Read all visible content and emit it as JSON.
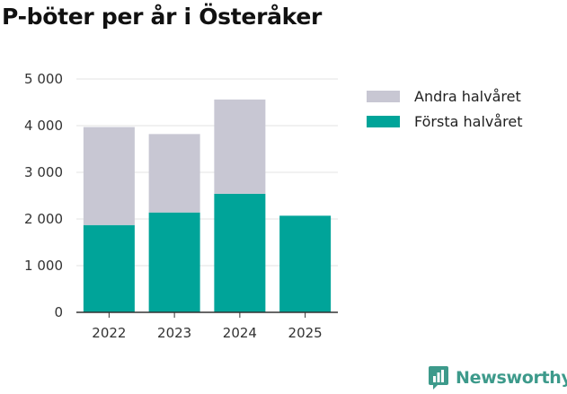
{
  "chart_data": {
    "type": "bar",
    "stacked": true,
    "title": "P-böter per år i Österåker",
    "categories": [
      "2022",
      "2023",
      "2024",
      "2025"
    ],
    "series": [
      {
        "name": "Första halvåret",
        "color": "#00a499",
        "values": [
          1870,
          2140,
          2540,
          2070
        ]
      },
      {
        "name": "Andra halvåret",
        "color": "#c8c7d3",
        "values": [
          2100,
          1680,
          2020,
          0
        ]
      }
    ],
    "y_ticks": [
      0,
      1000,
      2000,
      3000,
      4000,
      5000
    ],
    "y_tick_labels": [
      "0",
      "1 000",
      "2 000",
      "3 000",
      "4 000",
      "5 000"
    ],
    "ylim": [
      0,
      5000
    ],
    "grid": true,
    "legend_position": "right"
  },
  "legend": [
    {
      "label": "Andra halvåret",
      "color": "#c8c7d3"
    },
    {
      "label": "Första halvåret",
      "color": "#00a499"
    }
  ],
  "branding": {
    "name": "Newsworthy",
    "icon": "newsworthy-chart-icon",
    "color": "#3d9a8b"
  }
}
